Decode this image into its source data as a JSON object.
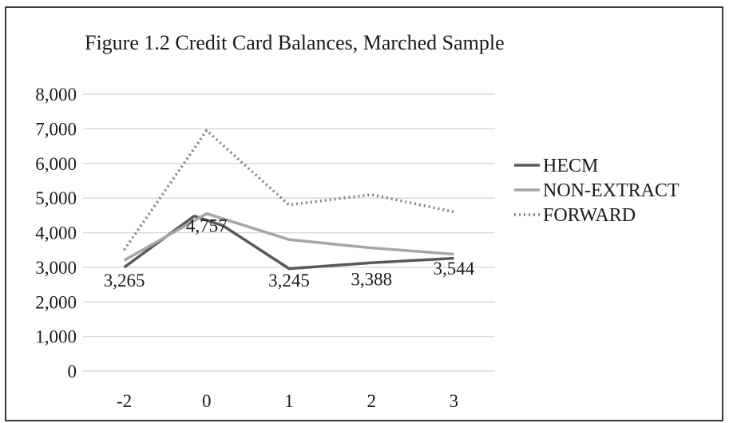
{
  "chart_data": {
    "type": "line",
    "title": "Figure 1.2 Credit Card Balances, Marched Sample",
    "xlabel": "",
    "ylabel": "",
    "categories": [
      "-2",
      "0",
      "1",
      "2",
      "3"
    ],
    "ylim": [
      0,
      8000
    ],
    "yticks": [
      "0",
      "1,000",
      "2,000",
      "3,000",
      "4,000",
      "5,000",
      "6,000",
      "7,000",
      "8,000"
    ],
    "grid": true,
    "legend_position": "right",
    "series": [
      {
        "name": "HECM",
        "style": "solid",
        "color": "#595959",
        "points": [
          [
            -2,
            3000
          ],
          [
            -0.3,
            4480
          ],
          [
            0.2,
            4200
          ],
          [
            1,
            2960
          ],
          [
            2,
            3130
          ],
          [
            3,
            3260
          ]
        ]
      },
      {
        "name": "NON-EXTRACT",
        "style": "solid",
        "color": "#a6a6a6",
        "points": [
          [
            -2,
            3200
          ],
          [
            0,
            4550
          ],
          [
            1,
            3800
          ],
          [
            2,
            3560
          ],
          [
            3,
            3380
          ]
        ]
      },
      {
        "name": "FORWARD",
        "style": "dotted",
        "color": "#808080",
        "points": [
          [
            -2,
            3500
          ],
          [
            0,
            6950
          ],
          [
            1,
            4800
          ],
          [
            2,
            5100
          ],
          [
            3,
            4600
          ]
        ]
      }
    ],
    "data_labels": [
      {
        "text": "3,265",
        "x": -2,
        "y": 2440
      },
      {
        "text": "4,757",
        "x": 0,
        "y": 4020
      },
      {
        "text": "3,245",
        "x": 1,
        "y": 2440
      },
      {
        "text": "3,388",
        "x": 2,
        "y": 2480
      },
      {
        "text": "3,544",
        "x": 3,
        "y": 2790
      }
    ]
  }
}
